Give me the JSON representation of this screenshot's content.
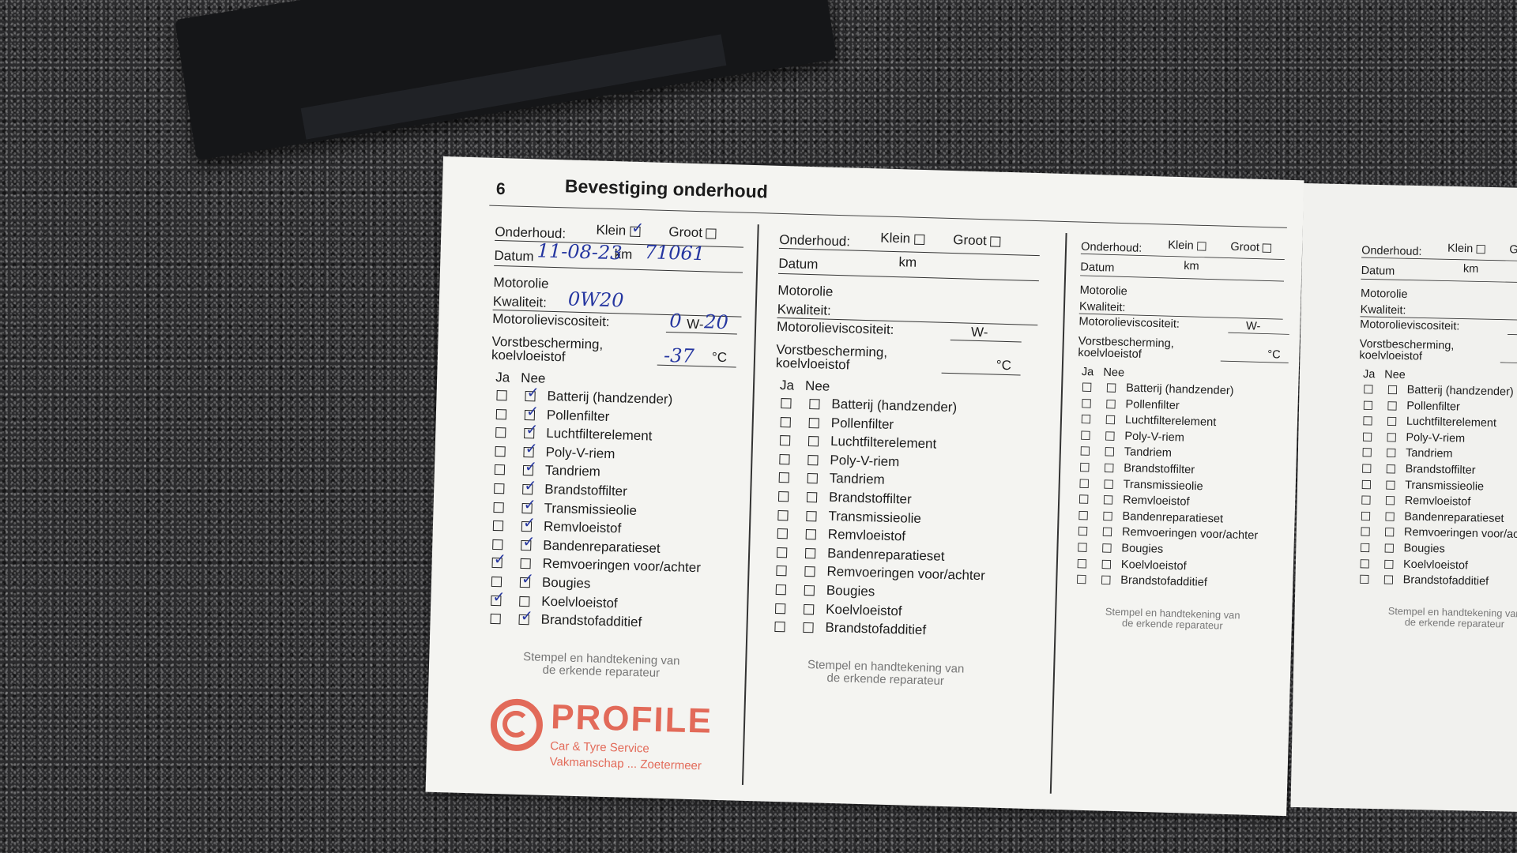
{
  "page_number": "6",
  "title": "Bevestiging onderhoud",
  "labels": {
    "onderhoud": "Onderhoud:",
    "klein": "Klein",
    "groot": "Groot",
    "datum": "Datum",
    "km": "km",
    "motorolie": "Motorolie",
    "kwaliteit": "Kwaliteit:",
    "viscositeit": "Motorolieviscositeit:",
    "w": "W-",
    "vorst1": "Vorstbescherming,",
    "vorst2": "koelvloeistof",
    "celsius": "°C",
    "ja": "Ja",
    "nee": "Nee",
    "stempel1": "Stempel en handtekening van",
    "stempel2": "de erkende reparateur"
  },
  "items": [
    "Batterij (handzender)",
    "Pollenfilter",
    "Luchtfilterelement",
    "Poly-V-riem",
    "Tandriem",
    "Brandstoffilter",
    "Transmissieolie",
    "Remvloeistof",
    "Bandenreparatieset",
    "Remvoeringen voor/achter",
    "Bougies",
    "Koelvloeistof",
    "Brandstofadditief"
  ],
  "entries": [
    {
      "klein_checked": true,
      "groot_checked": false,
      "datum": "11-08-23",
      "km": "71061",
      "kwaliteit": "0W20",
      "viscositeit": "0",
      "viscositeit_suffix": "20",
      "vorstbescherming": "-37",
      "ja": [
        false,
        false,
        false,
        false,
        false,
        false,
        false,
        false,
        false,
        true,
        false,
        true,
        false
      ],
      "nee": [
        true,
        true,
        true,
        true,
        true,
        true,
        true,
        true,
        true,
        false,
        true,
        false,
        true
      ],
      "stamp_text": "PROFILE",
      "stamp_small_text": [
        "Car & Tyre Service",
        "Vakmanschap ... Zoetermeer"
      ]
    },
    {
      "klein_checked": false,
      "groot_checked": false
    },
    {
      "klein_checked": false,
      "groot_checked": false
    },
    {
      "klein_checked": false
    }
  ],
  "accent_colors": {
    "ink": "#2536a0",
    "stamp": "#e0533f"
  }
}
